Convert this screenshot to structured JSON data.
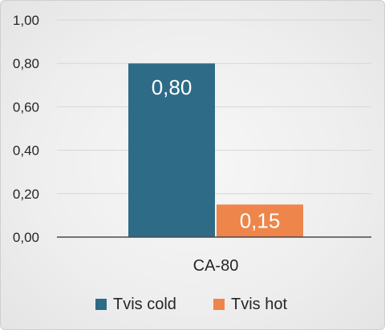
{
  "chart_data": {
    "type": "bar",
    "categories": [
      "CA-80"
    ],
    "series": [
      {
        "name": "Tvis cold",
        "values": [
          0.8
        ],
        "color": "#2e6b87",
        "label": "0,80"
      },
      {
        "name": "Tvis hot",
        "values": [
          0.15
        ],
        "color": "#ee854a",
        "label": "0,15"
      }
    ],
    "ylim": [
      0,
      1
    ],
    "yticks": [
      0.0,
      0.2,
      0.4,
      0.6,
      0.8,
      1.0
    ],
    "ytick_labels": [
      "0,00",
      "0,20",
      "0,40",
      "0,60",
      "0,80",
      "1,00"
    ],
    "grid": true,
    "legend_position": "bottom",
    "title": "",
    "xlabel": "",
    "ylabel": ""
  }
}
